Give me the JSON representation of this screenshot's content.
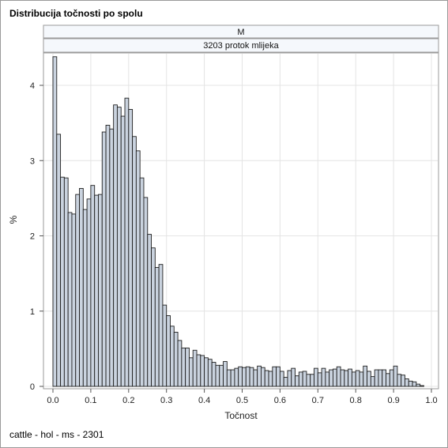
{
  "title": "Distribucija točnosti po spolu",
  "footnote": "cattle - hol - ms - 2301",
  "panel": {
    "header_row1": "M",
    "header_row2": "3203 protok mlijeka"
  },
  "colors": {
    "bar_fill": "#cad3df",
    "bar_stroke": "#1f1f1f",
    "grid": "#e4e4e4",
    "header_fill": "#f5f8fc",
    "axis": "#555555"
  },
  "chart_data": {
    "type": "bar",
    "subtype": "histogram",
    "xlabel": "Točnost",
    "ylabel": "%",
    "xlim": [
      0.0,
      1.0
    ],
    "ylim": [
      0,
      4.4
    ],
    "bin_width": 0.01,
    "x_ticks": [
      "0.0",
      "0.1",
      "0.2",
      "0.3",
      "0.4",
      "0.5",
      "0.6",
      "0.7",
      "0.8",
      "0.9",
      "1.0"
    ],
    "y_ticks": [
      "0",
      "1",
      "2",
      "3",
      "4"
    ],
    "grid": true,
    "bin_starts": [
      0.0,
      0.01,
      0.02,
      0.03,
      0.04,
      0.05,
      0.06,
      0.07,
      0.08,
      0.09,
      0.1,
      0.11,
      0.12,
      0.13,
      0.14,
      0.15,
      0.16,
      0.17,
      0.18,
      0.19,
      0.2,
      0.21,
      0.22,
      0.23,
      0.24,
      0.25,
      0.26,
      0.27,
      0.28,
      0.29,
      0.3,
      0.31,
      0.32,
      0.33,
      0.34,
      0.35,
      0.36,
      0.37,
      0.38,
      0.39,
      0.4,
      0.41,
      0.42,
      0.43,
      0.44,
      0.45,
      0.46,
      0.47,
      0.48,
      0.49,
      0.5,
      0.51,
      0.52,
      0.53,
      0.54,
      0.55,
      0.56,
      0.57,
      0.58,
      0.59,
      0.6,
      0.61,
      0.62,
      0.63,
      0.64,
      0.65,
      0.66,
      0.67,
      0.68,
      0.69,
      0.7,
      0.71,
      0.72,
      0.73,
      0.74,
      0.75,
      0.76,
      0.77,
      0.78,
      0.79,
      0.8,
      0.81,
      0.82,
      0.83,
      0.84,
      0.85,
      0.86,
      0.87,
      0.88,
      0.89,
      0.9,
      0.91,
      0.92,
      0.93,
      0.94,
      0.95,
      0.96,
      0.97
    ],
    "values": [
      4.38,
      3.35,
      2.78,
      2.77,
      2.31,
      2.29,
      2.55,
      2.63,
      2.35,
      2.49,
      2.67,
      2.54,
      2.55,
      3.38,
      3.47,
      3.42,
      3.74,
      3.71,
      3.59,
      3.83,
      3.68,
      3.32,
      3.13,
      2.77,
      2.51,
      2.02,
      1.84,
      1.58,
      1.62,
      1.08,
      0.94,
      0.8,
      0.72,
      0.61,
      0.51,
      0.51,
      0.38,
      0.48,
      0.42,
      0.41,
      0.38,
      0.36,
      0.32,
      0.28,
      0.28,
      0.33,
      0.22,
      0.22,
      0.24,
      0.26,
      0.25,
      0.26,
      0.25,
      0.22,
      0.27,
      0.25,
      0.21,
      0.2,
      0.26,
      0.26,
      0.2,
      0.12,
      0.21,
      0.24,
      0.14,
      0.19,
      0.2,
      0.16,
      0.16,
      0.24,
      0.18,
      0.24,
      0.19,
      0.22,
      0.23,
      0.26,
      0.22,
      0.21,
      0.23,
      0.19,
      0.21,
      0.19,
      0.27,
      0.2,
      0.13,
      0.22,
      0.22,
      0.22,
      0.17,
      0.22,
      0.27,
      0.16,
      0.15,
      0.1,
      0.07,
      0.06,
      0.03,
      0.01
    ]
  }
}
